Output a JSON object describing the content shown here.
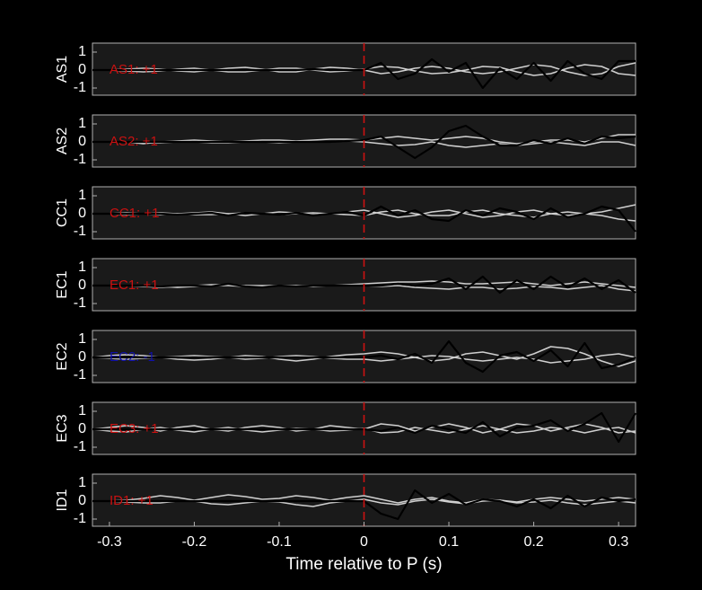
{
  "chart_data": [
    {
      "type": "line",
      "ylabel": "AS1",
      "annotation": "AS1: +1",
      "annotation_color": "#cc1111",
      "vline": 0,
      "vline_color": "#cc1111",
      "xlim": [
        -0.32,
        0.32
      ],
      "ylim": [
        -1.4,
        1.5
      ],
      "yticks": [
        -1,
        0,
        1
      ],
      "x": [
        -0.32,
        -0.3,
        -0.28,
        -0.26,
        -0.24,
        -0.22,
        -0.2,
        -0.18,
        -0.16,
        -0.14,
        -0.12,
        -0.1,
        -0.08,
        -0.06,
        -0.04,
        -0.02,
        0,
        0.02,
        0.04,
        0.06,
        0.08,
        0.1,
        0.12,
        0.14,
        0.16,
        0.18,
        0.2,
        0.22,
        0.24,
        0.26,
        0.28,
        0.3,
        0.32
      ],
      "series": [
        {
          "color": "#d0d0d0",
          "values": [
            0,
            0,
            0.05,
            0.1,
            0.05,
            -0.05,
            -0.1,
            0,
            0.1,
            0.15,
            0.05,
            -0.1,
            -0.1,
            0.05,
            0.15,
            0.1,
            0,
            -0.2,
            -0.1,
            0.1,
            0.2,
            0.1,
            -0.1,
            -0.2,
            -0.1,
            0.1,
            0.3,
            0.2,
            -0.1,
            -0.3,
            -0.2,
            0.2,
            0.4
          ]
        },
        {
          "color": "#d0d0d0",
          "values": [
            0,
            0,
            -0.05,
            -0.1,
            -0.05,
            0.05,
            0.1,
            0,
            -0.1,
            -0.1,
            0,
            0.1,
            0.1,
            0,
            -0.1,
            -0.05,
            0.05,
            0.2,
            0.15,
            -0.05,
            -0.2,
            -0.15,
            0,
            0.2,
            0.15,
            -0.1,
            -0.3,
            -0.2,
            0.1,
            0.3,
            0.2,
            -0.2,
            -0.3
          ]
        },
        {
          "color": "#000000",
          "values": [
            0,
            0,
            0,
            0,
            0,
            0,
            0,
            0,
            0,
            0,
            0,
            0,
            0,
            0.05,
            0,
            0,
            0,
            0.4,
            -0.5,
            -0.2,
            0.6,
            -0.1,
            0.4,
            -1.0,
            0.1,
            -0.5,
            0.4,
            -0.6,
            0.5,
            -0.2,
            -0.5,
            0.5,
            0.5
          ]
        }
      ]
    },
    {
      "type": "line",
      "ylabel": "AS2",
      "annotation": "AS2: +1",
      "annotation_color": "#cc1111",
      "vline": 0,
      "vline_color": "#cc1111",
      "xlim": [
        -0.32,
        0.32
      ],
      "ylim": [
        -1.4,
        1.5
      ],
      "yticks": [
        -1,
        0,
        1
      ],
      "x": [
        -0.32,
        -0.3,
        -0.28,
        -0.26,
        -0.24,
        -0.22,
        -0.2,
        -0.18,
        -0.16,
        -0.14,
        -0.12,
        -0.1,
        -0.08,
        -0.06,
        -0.04,
        -0.02,
        0,
        0.02,
        0.04,
        0.06,
        0.08,
        0.1,
        0.12,
        0.14,
        0.16,
        0.18,
        0.2,
        0.22,
        0.24,
        0.26,
        0.28,
        0.3,
        0.32
      ],
      "series": [
        {
          "color": "#d0d0d0",
          "values": [
            0,
            0,
            0,
            -0.1,
            0,
            0.05,
            0.1,
            0.05,
            0,
            0.05,
            0.1,
            0.1,
            0.05,
            0.1,
            0.15,
            0.15,
            0.1,
            0.2,
            0.3,
            0.2,
            0.1,
            0.2,
            0.3,
            0.2,
            0,
            -0.1,
            0,
            0.1,
            0.1,
            0,
            0.2,
            0.4,
            0.4
          ]
        },
        {
          "color": "#d0d0d0",
          "values": [
            0,
            0,
            0,
            -0.05,
            -0.05,
            0,
            0,
            -0.05,
            -0.05,
            0,
            0,
            -0.05,
            0,
            0,
            0,
            0.05,
            0,
            -0.1,
            -0.2,
            -0.15,
            0,
            -0.2,
            -0.3,
            -0.2,
            -0.1,
            -0.2,
            -0.1,
            0,
            -0.1,
            -0.2,
            0,
            0,
            -0.2
          ]
        },
        {
          "color": "#000000",
          "values": [
            0,
            0,
            0,
            0,
            0,
            0,
            0,
            0,
            0,
            0,
            0,
            0,
            0,
            0,
            0,
            0.05,
            0.1,
            0.3,
            -0.3,
            -0.9,
            -0.3,
            0.6,
            0.9,
            0.3,
            -0.2,
            -0.2,
            0.1,
            -0.1,
            0.2,
            -0.1,
            0.3,
            0.2,
            0.3
          ]
        }
      ]
    },
    {
      "type": "line",
      "ylabel": "CC1",
      "annotation": "CC1: +1",
      "annotation_color": "#cc1111",
      "vline": 0,
      "vline_color": "#cc1111",
      "xlim": [
        -0.32,
        0.32
      ],
      "ylim": [
        -1.4,
        1.5
      ],
      "yticks": [
        -1,
        0,
        1
      ],
      "x": [
        -0.32,
        -0.3,
        -0.28,
        -0.26,
        -0.24,
        -0.22,
        -0.2,
        -0.18,
        -0.16,
        -0.14,
        -0.12,
        -0.1,
        -0.08,
        -0.06,
        -0.04,
        -0.02,
        0,
        0.02,
        0.04,
        0.06,
        0.08,
        0.1,
        0.12,
        0.14,
        0.16,
        0.18,
        0.2,
        0.22,
        0.24,
        0.26,
        0.28,
        0.3,
        0.32
      ],
      "series": [
        {
          "color": "#d0d0d0",
          "values": [
            0,
            0,
            0.05,
            0,
            -0.05,
            0,
            0.05,
            0.1,
            0,
            -0.1,
            0,
            0.1,
            0.05,
            -0.05,
            0,
            0.1,
            0.2,
            0,
            -0.2,
            -0.1,
            0.1,
            0.2,
            0,
            -0.2,
            -0.1,
            0.1,
            0.2,
            0,
            -0.1,
            0,
            0.1,
            0.3,
            0.5
          ]
        },
        {
          "color": "#d0d0d0",
          "values": [
            0,
            0,
            -0.05,
            0,
            0.05,
            0,
            -0.05,
            -0.05,
            0,
            0.05,
            0,
            -0.05,
            0,
            0.05,
            0,
            -0.05,
            -0.1,
            0.1,
            0.2,
            0,
            -0.1,
            -0.1,
            0.1,
            0.2,
            0,
            -0.1,
            -0.2,
            0,
            0.1,
            0,
            -0.1,
            -0.3,
            -0.4
          ]
        },
        {
          "color": "#000000",
          "values": [
            0,
            0,
            0,
            0,
            0,
            -0.05,
            0,
            0.05,
            -0.1,
            0.05,
            0,
            -0.05,
            0.05,
            -0.1,
            0,
            0.1,
            -0.1,
            0.4,
            -0.1,
            0.2,
            -0.3,
            -0.4,
            0.2,
            -0.1,
            0.3,
            0.1,
            -0.3,
            0.3,
            -0.2,
            0,
            0.4,
            0.2,
            -1.0
          ]
        }
      ]
    },
    {
      "type": "line",
      "ylabel": "EC1",
      "annotation": "EC1: +1",
      "annotation_color": "#cc1111",
      "vline": 0,
      "vline_color": "#cc1111",
      "xlim": [
        -0.32,
        0.32
      ],
      "ylim": [
        -1.4,
        1.5
      ],
      "yticks": [
        -1,
        0,
        1
      ],
      "x": [
        -0.32,
        -0.3,
        -0.28,
        -0.26,
        -0.24,
        -0.22,
        -0.2,
        -0.18,
        -0.16,
        -0.14,
        -0.12,
        -0.1,
        -0.08,
        -0.06,
        -0.04,
        -0.02,
        0,
        0.02,
        0.04,
        0.06,
        0.08,
        0.1,
        0.12,
        0.14,
        0.16,
        0.18,
        0.2,
        0.22,
        0.24,
        0.26,
        0.28,
        0.3,
        0.32
      ],
      "series": [
        {
          "color": "#d0d0d0",
          "values": [
            0,
            0,
            0,
            -0.05,
            -0.1,
            -0.05,
            0,
            0.05,
            0.05,
            0,
            0,
            0,
            0,
            0,
            0,
            0.05,
            0.1,
            0.15,
            0.2,
            0.2,
            0.25,
            0.2,
            0.1,
            0.1,
            0.15,
            0.2,
            0.1,
            0,
            0.1,
            0.2,
            0.1,
            0,
            -0.1
          ]
        },
        {
          "color": "#d0d0d0",
          "values": [
            0,
            0,
            0,
            0,
            -0.05,
            -0.1,
            -0.05,
            0,
            0,
            -0.05,
            -0.05,
            0,
            0,
            -0.05,
            0,
            0,
            0,
            -0.05,
            0,
            -0.1,
            -0.15,
            -0.2,
            -0.1,
            -0.1,
            -0.2,
            -0.15,
            -0.05,
            -0.1,
            -0.2,
            -0.1,
            0,
            -0.2,
            -0.3
          ]
        },
        {
          "color": "#000000",
          "values": [
            0,
            0,
            0,
            0,
            -0.05,
            0,
            0,
            -0.05,
            0.1,
            -0.05,
            -0.1,
            0,
            -0.05,
            0,
            0,
            0,
            0,
            0,
            0.1,
            0,
            0.1,
            0.4,
            -0.2,
            0.5,
            -0.4,
            0.3,
            -0.2,
            0.5,
            -0.1,
            0.4,
            -0.2,
            0.3,
            -0.4
          ]
        }
      ]
    },
    {
      "type": "line",
      "ylabel": "EC2",
      "annotation": "EC2: -1",
      "annotation_color": "#1111aa",
      "vline": 0,
      "vline_color": "#cc1111",
      "xlim": [
        -0.32,
        0.32
      ],
      "ylim": [
        -1.4,
        1.5
      ],
      "yticks": [
        -1,
        0,
        1
      ],
      "x": [
        -0.32,
        -0.3,
        -0.28,
        -0.26,
        -0.24,
        -0.22,
        -0.2,
        -0.18,
        -0.16,
        -0.14,
        -0.12,
        -0.1,
        -0.08,
        -0.06,
        -0.04,
        -0.02,
        0,
        0.02,
        0.04,
        0.06,
        0.08,
        0.1,
        0.12,
        0.14,
        0.16,
        0.18,
        0.2,
        0.22,
        0.24,
        0.26,
        0.28,
        0.3,
        0.32
      ],
      "series": [
        {
          "color": "#d0d0d0",
          "values": [
            0,
            0.1,
            0.15,
            0.1,
            0,
            -0.1,
            -0.15,
            -0.1,
            0,
            0.1,
            0.05,
            -0.1,
            -0.2,
            -0.1,
            0.05,
            0.15,
            0.2,
            0.3,
            0.2,
            0,
            -0.2,
            -0.1,
            0.2,
            0.3,
            0.1,
            -0.1,
            0.2,
            0.6,
            0.5,
            0.2,
            -0.2,
            -0.5,
            -0.2
          ]
        },
        {
          "color": "#d0d0d0",
          "values": [
            0,
            -0.05,
            -0.1,
            -0.05,
            0,
            0.05,
            0.1,
            0.05,
            0,
            -0.1,
            -0.05,
            0.05,
            0.1,
            0.05,
            -0.05,
            -0.1,
            -0.1,
            -0.2,
            -0.1,
            0,
            0.1,
            0.05,
            -0.1,
            -0.2,
            -0.1,
            0,
            -0.1,
            -0.3,
            -0.2,
            -0.1,
            0.1,
            0.2,
            0
          ]
        },
        {
          "color": "#000000",
          "values": [
            0,
            0,
            0,
            0,
            0,
            0,
            0,
            0,
            0,
            0,
            0,
            0,
            0,
            0,
            0,
            0,
            0,
            0.1,
            -0.1,
            0.2,
            -0.3,
            0.9,
            -0.3,
            -0.8,
            0.1,
            0.3,
            -0.2,
            0.4,
            -0.5,
            0.8,
            -0.6,
            -0.4,
            0
          ]
        }
      ]
    },
    {
      "type": "line",
      "ylabel": "EC3",
      "annotation": "EC3: +1",
      "annotation_color": "#cc1111",
      "vline": 0,
      "vline_color": "#cc1111",
      "xlim": [
        -0.32,
        0.32
      ],
      "ylim": [
        -1.4,
        1.5
      ],
      "yticks": [
        -1,
        0,
        1
      ],
      "x": [
        -0.32,
        -0.3,
        -0.28,
        -0.26,
        -0.24,
        -0.22,
        -0.2,
        -0.18,
        -0.16,
        -0.14,
        -0.12,
        -0.1,
        -0.08,
        -0.06,
        -0.04,
        -0.02,
        0,
        0.02,
        0.04,
        0.06,
        0.08,
        0.1,
        0.12,
        0.14,
        0.16,
        0.18,
        0.2,
        0.22,
        0.24,
        0.26,
        0.28,
        0.3,
        0.32
      ],
      "series": [
        {
          "color": "#d0d0d0",
          "values": [
            0,
            0.1,
            0.2,
            0.1,
            -0.1,
            0.1,
            0.2,
            0,
            -0.1,
            0.1,
            0.2,
            0.1,
            -0.1,
            0,
            0.2,
            0.1,
            0,
            0.3,
            0.2,
            -0.1,
            0.1,
            0.3,
            0.1,
            -0.2,
            0,
            0.3,
            0.2,
            -0.1,
            0.1,
            0.3,
            0.1,
            -0.2,
            -0.1
          ]
        },
        {
          "color": "#d0d0d0",
          "values": [
            0,
            -0.1,
            -0.15,
            0,
            0.1,
            -0.05,
            -0.15,
            0,
            0.1,
            -0.05,
            -0.15,
            -0.05,
            0.05,
            0,
            -0.1,
            -0.05,
            0.05,
            -0.2,
            -0.15,
            0.1,
            -0.05,
            -0.2,
            0,
            0.2,
            0,
            -0.2,
            -0.1,
            0.1,
            0,
            -0.2,
            0,
            0.1,
            -0.2
          ]
        },
        {
          "color": "#000000",
          "values": [
            0,
            0,
            0,
            0,
            0,
            0,
            0,
            0,
            0,
            0,
            0,
            0,
            0,
            0,
            0,
            0,
            0,
            -0.1,
            0.1,
            -0.2,
            0.2,
            0,
            -0.2,
            0.4,
            -0.4,
            0.1,
            0.2,
            0.5,
            -0.1,
            0.3,
            0.9,
            -0.7,
            0.9
          ]
        }
      ]
    },
    {
      "type": "line",
      "ylabel": "ID1",
      "annotation": "ID1: +1",
      "annotation_color": "#cc1111",
      "vline": 0,
      "vline_color": "#cc1111",
      "xlim": [
        -0.32,
        0.32
      ],
      "ylim": [
        -1.4,
        1.5
      ],
      "yticks": [
        -1,
        0,
        1
      ],
      "xticks": [
        -0.3,
        -0.2,
        -0.1,
        0,
        0.1,
        0.2,
        0.3
      ],
      "xlabel": "Time relative to P (s)",
      "x": [
        -0.32,
        -0.3,
        -0.28,
        -0.26,
        -0.24,
        -0.22,
        -0.2,
        -0.18,
        -0.16,
        -0.14,
        -0.12,
        -0.1,
        -0.08,
        -0.06,
        -0.04,
        -0.02,
        0,
        0.02,
        0.04,
        0.06,
        0.08,
        0.1,
        0.12,
        0.14,
        0.16,
        0.18,
        0.2,
        0.22,
        0.24,
        0.26,
        0.28,
        0.3,
        0.32
      ],
      "series": [
        {
          "color": "#d0d0d0",
          "values": [
            0,
            0,
            0.05,
            0.15,
            0.3,
            0.2,
            0.05,
            0.2,
            0.35,
            0.25,
            0.1,
            0.15,
            0.3,
            0.2,
            0.05,
            0.2,
            0.3,
            0.1,
            -0.1,
            0.1,
            0.2,
            0,
            -0.1,
            0.1,
            0.05,
            -0.05,
            0.1,
            0.2,
            0.1,
            0,
            0.1,
            0.2,
            0.1
          ]
        },
        {
          "color": "#d0d0d0",
          "values": [
            0,
            0,
            -0.05,
            -0.1,
            -0.1,
            0,
            0,
            -0.15,
            -0.2,
            -0.1,
            0,
            -0.05,
            -0.2,
            -0.3,
            -0.1,
            0,
            0.1,
            -0.1,
            -0.2,
            0,
            0.1,
            -0.05,
            -0.15,
            0,
            0.05,
            -0.1,
            -0.05,
            0.05,
            -0.1,
            -0.2,
            -0.1,
            0,
            -0.1
          ]
        },
        {
          "color": "#000000",
          "values": [
            0,
            0,
            0,
            0,
            0,
            0,
            0,
            0,
            0,
            0,
            0,
            0,
            0,
            0,
            0,
            0,
            0,
            -0.7,
            -1.0,
            0.6,
            -0.1,
            0.4,
            -0.2,
            0.1,
            0,
            -0.3,
            0.1,
            -0.4,
            0.3,
            -0.3,
            0.2,
            0,
            0.1
          ]
        }
      ]
    }
  ]
}
